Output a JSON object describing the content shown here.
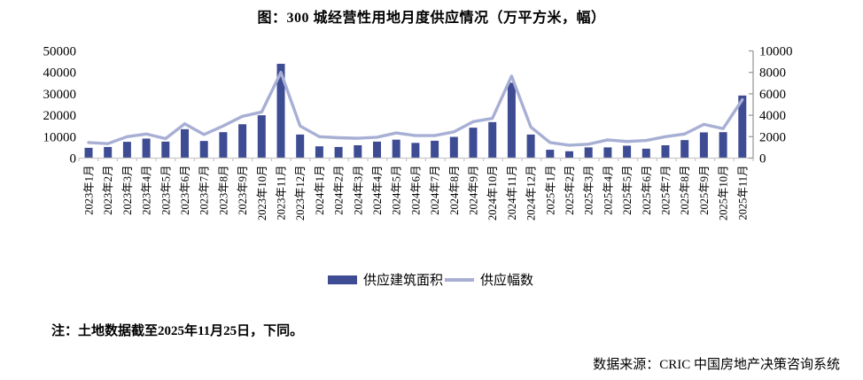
{
  "title": "图：300 城经营性用地月度供应情况（万平方米，幅）",
  "note": "注：土地数据截至2025年11月25日，下同。",
  "source": "数据来源：CRIC 中国房地产决策咨询系统",
  "legend": {
    "bar_label": "供应建筑面积",
    "line_label": "供应幅数"
  },
  "colors": {
    "bar": "#3E4C94",
    "line": "#A8AFD4",
    "bottom_axis": "#C9C9C9",
    "right_axis": "#9B9B9B",
    "text": "#000000"
  },
  "chart_data": {
    "type": "bar+line",
    "title": "图：300 城经营性用地月度供应情况（万平方米，幅）",
    "categories": [
      "2023年1月",
      "2023年2月",
      "2023年3月",
      "2023年4月",
      "2023年5月",
      "2023年6月",
      "2023年7月",
      "2023年8月",
      "2023年9月",
      "2023年10月",
      "2023年11月",
      "2023年12月",
      "2024年1月",
      "2024年2月",
      "2024年3月",
      "2024年4月",
      "2024年5月",
      "2024年6月",
      "2024年7月",
      "2024年8月",
      "2024年9月",
      "2024年10月",
      "2024年11月",
      "2024年12月",
      "2025年1月",
      "2025年2月",
      "2025年3月",
      "2025年4月",
      "2025年5月",
      "2025年6月",
      "2025年7月",
      "2025年8月",
      "2025年9月",
      "2025年10月",
      "2025年11月"
    ],
    "series": [
      {
        "name": "供应建筑面积",
        "type": "bar",
        "axis": "left",
        "values": [
          4800,
          5200,
          7600,
          9100,
          7700,
          13500,
          8000,
          12100,
          15800,
          20000,
          44000,
          11000,
          5500,
          5200,
          6000,
          7700,
          8600,
          7100,
          8100,
          9900,
          14200,
          16800,
          35200,
          11000,
          3900,
          3200,
          5000,
          5000,
          5800,
          4400,
          6000,
          8400,
          12000,
          12100,
          29200
        ]
      },
      {
        "name": "供应幅数",
        "type": "line",
        "axis": "right",
        "values": [
          1450,
          1350,
          2000,
          2250,
          1820,
          3200,
          2200,
          3000,
          3900,
          4300,
          8000,
          3000,
          2000,
          1900,
          1850,
          1950,
          2350,
          2100,
          2100,
          2450,
          3400,
          3700,
          7650,
          2900,
          1450,
          1200,
          1300,
          1700,
          1550,
          1650,
          2000,
          2250,
          3150,
          2750,
          5450
        ]
      }
    ],
    "left_axis": {
      "min": 0,
      "max": 50000,
      "step": 10000,
      "ticks": [
        0,
        10000,
        20000,
        30000,
        40000,
        50000
      ]
    },
    "right_axis": {
      "min": 0,
      "max": 10000,
      "step": 2000,
      "ticks": [
        0,
        2000,
        4000,
        6000,
        8000,
        10000
      ]
    },
    "grid": false,
    "legend_position": "bottom"
  }
}
